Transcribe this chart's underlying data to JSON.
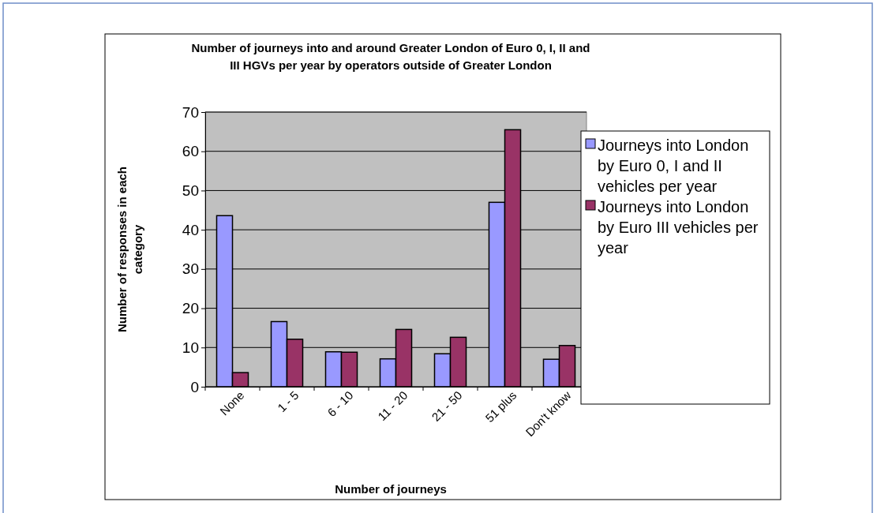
{
  "chart_data": {
    "type": "bar",
    "title": "Number of journeys into and around Greater London of Euro 0, I, II  and III HGVs per year by operators outside of Greater London",
    "xlabel": "Number of journeys",
    "ylabel": "Number of responses in each category",
    "categories": [
      "None",
      "1 - 5",
      "6 - 10",
      "11 - 20",
      "21 - 50",
      "51 plus",
      "Don't know"
    ],
    "series": [
      {
        "name": "Journeys into London by Euro 0, I and II vehicles per year",
        "color": "#9999ff",
        "values": [
          43.6,
          16.6,
          8.9,
          7.1,
          8.4,
          47.0,
          7.0
        ]
      },
      {
        "name": "Journeys into London by Euro III vehicles per year",
        "color": "#993366",
        "values": [
          3.6,
          12.1,
          8.8,
          14.6,
          12.6,
          65.5,
          10.5
        ]
      }
    ],
    "ylim": [
      0,
      70
    ],
    "yticks": [
      0,
      10,
      20,
      30,
      40,
      50,
      60,
      70
    ],
    "grid": "y",
    "legend": "right"
  }
}
